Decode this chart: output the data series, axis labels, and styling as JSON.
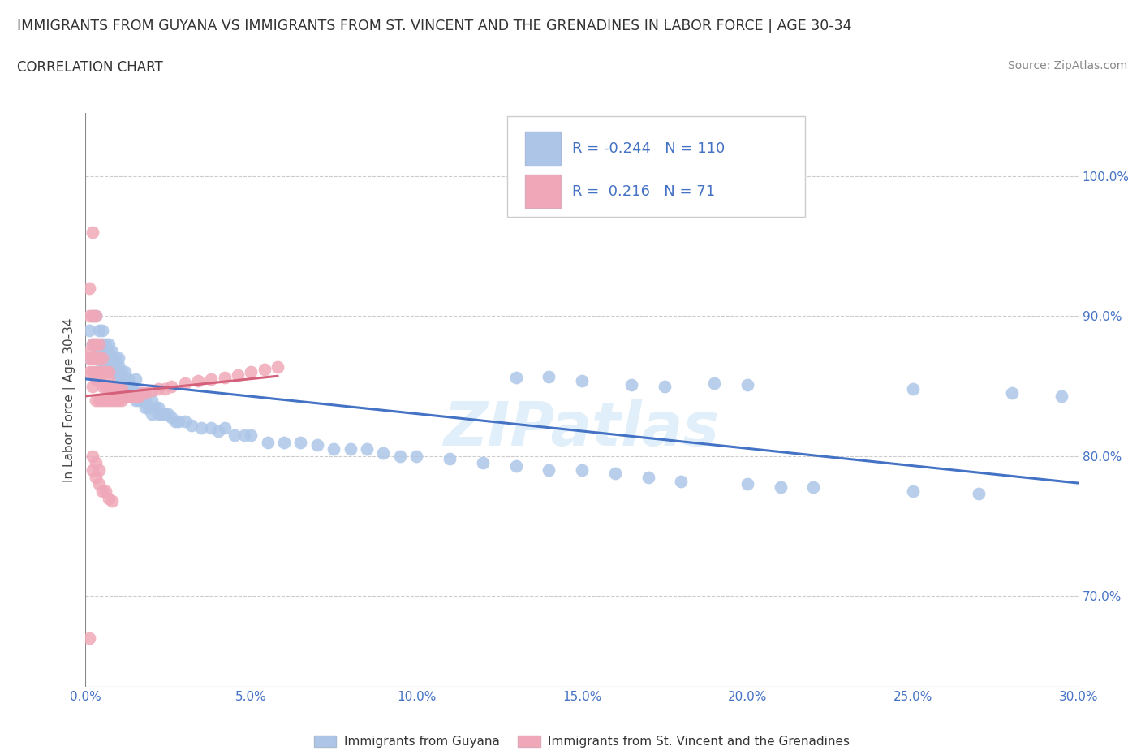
{
  "title": "IMMIGRANTS FROM GUYANA VS IMMIGRANTS FROM ST. VINCENT AND THE GRENADINES IN LABOR FORCE | AGE 30-34",
  "subtitle": "CORRELATION CHART",
  "source": "Source: ZipAtlas.com",
  "ylabel": "In Labor Force | Age 30-34",
  "legend1_label": "Immigrants from Guyana",
  "legend2_label": "Immigrants from St. Vincent and the Grenadines",
  "r1": -0.244,
  "n1": 110,
  "r2": 0.216,
  "n2": 71,
  "color_blue": "#adc6e8",
  "color_pink": "#f0a8b8",
  "color_blue_dark": "#4472c4",
  "color_pink_dark": "#d4607a",
  "trend_blue": "#4472c4",
  "trend_pink": "#d4607a",
  "xlim": [
    0.0,
    0.3
  ],
  "ylim": [
    0.635,
    1.045
  ],
  "xticks": [
    0.0,
    0.05,
    0.1,
    0.15,
    0.2,
    0.25,
    0.3
  ],
  "yticks_right": [
    0.7,
    0.8,
    0.9,
    1.0
  ],
  "xticklabels": [
    "0.0%",
    "5.0%",
    "10.0%",
    "15.0%",
    "20.0%",
    "25.0%",
    "30.0%"
  ],
  "yticklabels_right": [
    "70.0%",
    "80.0%",
    "90.0%",
    "100.0%"
  ],
  "blue_x": [
    0.001,
    0.001,
    0.002,
    0.002,
    0.002,
    0.003,
    0.003,
    0.003,
    0.003,
    0.004,
    0.004,
    0.004,
    0.004,
    0.005,
    0.005,
    0.005,
    0.005,
    0.005,
    0.006,
    0.006,
    0.006,
    0.006,
    0.007,
    0.007,
    0.007,
    0.007,
    0.008,
    0.008,
    0.008,
    0.008,
    0.009,
    0.009,
    0.009,
    0.01,
    0.01,
    0.01,
    0.01,
    0.011,
    0.011,
    0.012,
    0.012,
    0.012,
    0.013,
    0.013,
    0.013,
    0.014,
    0.014,
    0.015,
    0.015,
    0.015,
    0.016,
    0.016,
    0.017,
    0.017,
    0.018,
    0.018,
    0.019,
    0.02,
    0.02,
    0.021,
    0.022,
    0.022,
    0.023,
    0.024,
    0.025,
    0.026,
    0.027,
    0.028,
    0.03,
    0.032,
    0.035,
    0.038,
    0.04,
    0.042,
    0.045,
    0.048,
    0.05,
    0.055,
    0.06,
    0.065,
    0.07,
    0.075,
    0.08,
    0.085,
    0.09,
    0.095,
    0.1,
    0.11,
    0.12,
    0.13,
    0.14,
    0.15,
    0.16,
    0.17,
    0.18,
    0.2,
    0.21,
    0.22,
    0.25,
    0.27,
    0.14,
    0.2,
    0.25,
    0.28,
    0.295,
    0.165,
    0.175,
    0.13,
    0.15,
    0.19
  ],
  "blue_y": [
    0.87,
    0.89,
    0.87,
    0.88,
    0.9,
    0.87,
    0.87,
    0.88,
    0.9,
    0.87,
    0.87,
    0.875,
    0.89,
    0.865,
    0.87,
    0.875,
    0.88,
    0.89,
    0.865,
    0.87,
    0.875,
    0.88,
    0.865,
    0.87,
    0.875,
    0.88,
    0.86,
    0.865,
    0.87,
    0.875,
    0.86,
    0.865,
    0.87,
    0.855,
    0.86,
    0.865,
    0.87,
    0.855,
    0.86,
    0.85,
    0.855,
    0.86,
    0.845,
    0.85,
    0.855,
    0.845,
    0.85,
    0.84,
    0.845,
    0.855,
    0.84,
    0.845,
    0.84,
    0.845,
    0.835,
    0.84,
    0.835,
    0.83,
    0.84,
    0.835,
    0.83,
    0.835,
    0.83,
    0.83,
    0.83,
    0.828,
    0.825,
    0.825,
    0.825,
    0.822,
    0.82,
    0.82,
    0.818,
    0.82,
    0.815,
    0.815,
    0.815,
    0.81,
    0.81,
    0.81,
    0.808,
    0.805,
    0.805,
    0.805,
    0.802,
    0.8,
    0.8,
    0.798,
    0.795,
    0.793,
    0.79,
    0.79,
    0.788,
    0.785,
    0.782,
    0.78,
    0.778,
    0.778,
    0.775,
    0.773,
    0.857,
    0.851,
    0.848,
    0.845,
    0.843,
    0.851,
    0.85,
    0.856,
    0.854,
    0.852
  ],
  "pink_x": [
    0.001,
    0.001,
    0.001,
    0.001,
    0.001,
    0.002,
    0.002,
    0.002,
    0.002,
    0.002,
    0.002,
    0.003,
    0.003,
    0.003,
    0.003,
    0.003,
    0.003,
    0.004,
    0.004,
    0.004,
    0.004,
    0.004,
    0.005,
    0.005,
    0.005,
    0.005,
    0.006,
    0.006,
    0.006,
    0.007,
    0.007,
    0.007,
    0.007,
    0.008,
    0.008,
    0.009,
    0.009,
    0.01,
    0.01,
    0.011,
    0.011,
    0.012,
    0.013,
    0.014,
    0.015,
    0.016,
    0.017,
    0.018,
    0.02,
    0.022,
    0.024,
    0.026,
    0.03,
    0.034,
    0.038,
    0.042,
    0.046,
    0.05,
    0.054,
    0.058,
    0.002,
    0.002,
    0.003,
    0.003,
    0.004,
    0.004,
    0.005,
    0.006,
    0.007,
    0.008,
    0.001
  ],
  "pink_y": [
    0.86,
    0.87,
    0.875,
    0.9,
    0.92,
    0.85,
    0.86,
    0.87,
    0.88,
    0.9,
    0.96,
    0.84,
    0.855,
    0.86,
    0.87,
    0.88,
    0.9,
    0.84,
    0.855,
    0.86,
    0.87,
    0.88,
    0.84,
    0.85,
    0.86,
    0.87,
    0.84,
    0.85,
    0.86,
    0.84,
    0.85,
    0.855,
    0.86,
    0.84,
    0.85,
    0.84,
    0.848,
    0.84,
    0.848,
    0.84,
    0.848,
    0.842,
    0.843,
    0.843,
    0.843,
    0.843,
    0.845,
    0.845,
    0.847,
    0.848,
    0.848,
    0.85,
    0.852,
    0.854,
    0.855,
    0.856,
    0.858,
    0.86,
    0.862,
    0.864,
    0.79,
    0.8,
    0.785,
    0.795,
    0.78,
    0.79,
    0.775,
    0.775,
    0.77,
    0.768,
    0.67
  ]
}
